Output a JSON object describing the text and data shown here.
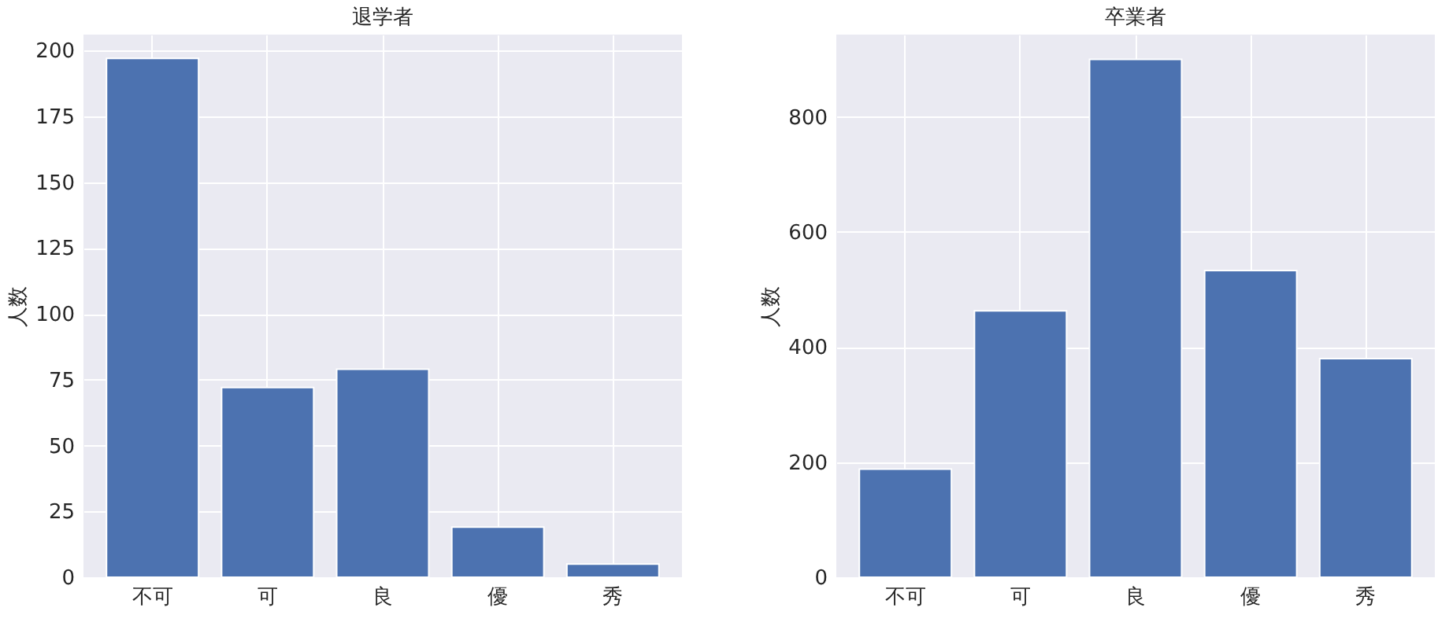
{
  "chart_data": [
    {
      "type": "bar",
      "title": "退学者",
      "ylabel": "人数",
      "categories": [
        "不可",
        "可",
        "良",
        "優",
        "秀"
      ],
      "values": [
        197,
        72,
        79,
        19,
        5
      ],
      "color": "#4c72b0",
      "ylim": [
        0,
        206
      ],
      "yticks": [
        0,
        25,
        50,
        75,
        100,
        125,
        150,
        175,
        200
      ],
      "grid": true
    },
    {
      "type": "bar",
      "title": "卒業者",
      "ylabel": "人数",
      "categories": [
        "不可",
        "可",
        "良",
        "優",
        "秀"
      ],
      "values": [
        188,
        463,
        900,
        533,
        380
      ],
      "color": "#4c72b0",
      "ylim": [
        0,
        943
      ],
      "yticks": [
        0,
        200,
        400,
        600,
        800
      ],
      "grid": true
    }
  ]
}
